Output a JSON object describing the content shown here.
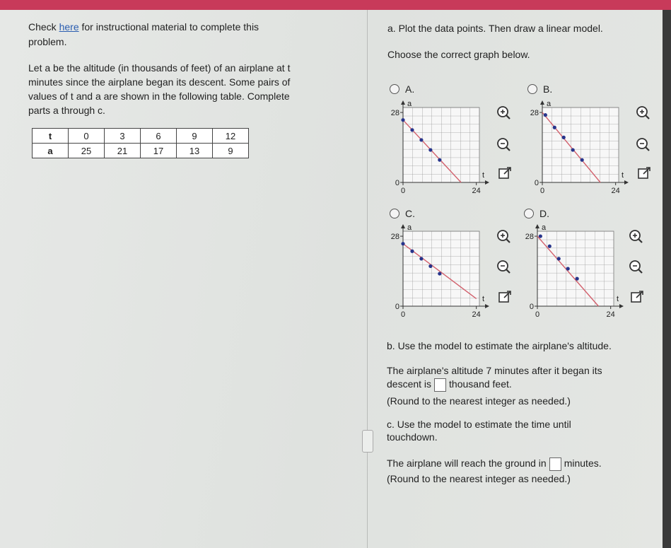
{
  "left": {
    "intro_start": "Check",
    "intro_link": "here",
    "intro_end": "for instructional material to complete this",
    "intro_end_2": "problem.",
    "problem_lines": [
      "Let a be the altitude (in thousands of feet) of an airplane at t",
      "minutes since the airplane began its descent. Some pairs of",
      "values of t and a are shown in the following table. Complete",
      "parts a through c."
    ],
    "table": {
      "rows": [
        [
          "t",
          "0",
          "3",
          "6",
          "9",
          "12"
        ],
        [
          "a",
          "25",
          "21",
          "17",
          "13",
          "9"
        ]
      ]
    }
  },
  "part_a": {
    "title": "a. Plot the data points. Then draw a linear model.",
    "prompt": "Choose the correct graph below.",
    "options": [
      {
        "label": "A.",
        "x_label": "t",
        "y_label": "a",
        "xlim": [
          0,
          25
        ],
        "ylim": [
          0,
          30
        ],
        "xticks": [
          0,
          24
        ],
        "yticks": [
          0,
          28
        ],
        "points": {
          "x": [
            0,
            3,
            6,
            9,
            12
          ],
          "values": [
            25,
            21,
            17,
            13,
            9
          ]
        },
        "model": {
          "x": [
            0,
            19
          ],
          "values": [
            25,
            0
          ]
        }
      },
      {
        "label": "B.",
        "x_label": "t",
        "y_label": "a",
        "xlim": [
          0,
          25
        ],
        "ylim": [
          0,
          30
        ],
        "xticks": [
          0,
          24
        ],
        "yticks": [
          0,
          28
        ],
        "points": {
          "x": [
            1,
            4,
            7,
            10,
            13
          ],
          "values": [
            27,
            22,
            18,
            13,
            9
          ]
        },
        "model": {
          "x": [
            0,
            19
          ],
          "values": [
            28,
            0
          ]
        }
      },
      {
        "label": "C.",
        "x_label": "t",
        "y_label": "a",
        "xlim": [
          0,
          25
        ],
        "ylim": [
          0,
          30
        ],
        "xticks": [
          0,
          24
        ],
        "yticks": [
          0,
          28
        ],
        "points": {
          "x": [
            0,
            3,
            6,
            9,
            12
          ],
          "values": [
            25,
            22,
            19,
            16,
            13
          ]
        },
        "model": {
          "x": [
            0,
            24
          ],
          "values": [
            25,
            3
          ]
        }
      },
      {
        "label": "D.",
        "x_label": "t",
        "y_label": "a",
        "xlim": [
          0,
          25
        ],
        "ylim": [
          0,
          30
        ],
        "xticks": [
          0,
          24
        ],
        "yticks": [
          0,
          28
        ],
        "points": {
          "x": [
            1,
            4,
            7,
            10,
            13
          ],
          "values": [
            28,
            24,
            19,
            15,
            11
          ]
        },
        "model": {
          "x": [
            0,
            20
          ],
          "values": [
            28,
            0
          ]
        }
      }
    ]
  },
  "part_b": {
    "title": "b. Use the model to estimate the airplane's altitude.",
    "line_1": "The airplane's altitude 7 minutes after it began its",
    "line_2_start": "descent is",
    "line_2_end": "thousand feet.",
    "note": "(Round to the nearest integer as needed.)"
  },
  "part_c": {
    "title_1": "c. Use the model to estimate the time until",
    "title_2": "touchdown.",
    "line_start": "The airplane will reach the ground in",
    "line_end": "minutes.",
    "note": "(Round to the nearest integer as needed.)"
  }
}
